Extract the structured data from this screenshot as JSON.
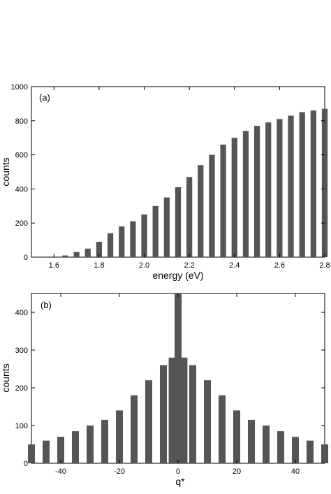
{
  "chart_data": [
    {
      "type": "bar",
      "panel_label": "(a)",
      "xlabel": "energy (eV)",
      "ylabel": "counts",
      "xlim": [
        1.5,
        2.8
      ],
      "ylim": [
        0,
        1000
      ],
      "xticks": [
        1.6,
        1.8,
        2.0,
        2.2,
        2.4,
        2.6,
        2.8
      ],
      "xtick_labels": [
        "1.6",
        "1.8",
        "2.0",
        "2.2",
        "2.4",
        "2.6",
        "2.8"
      ],
      "yticks": [
        0,
        200,
        400,
        600,
        800,
        1000
      ],
      "ytick_labels": [
        "0",
        "200",
        "400",
        "600",
        "800",
        "1000"
      ],
      "bar_color": "#555555",
      "series": [
        {
          "x": [
            1.5,
            1.55,
            1.6,
            1.62,
            1.65,
            1.7,
            1.75,
            1.8,
            1.85,
            1.9,
            1.95,
            2.0,
            2.05,
            2.1,
            2.15,
            2.2,
            2.25,
            2.3,
            2.35,
            2.4,
            2.45,
            2.5,
            2.55,
            2.6,
            2.65,
            2.7,
            2.75,
            2.8
          ],
          "values": [
            0,
            0,
            0,
            0,
            10,
            30,
            50,
            90,
            140,
            180,
            210,
            250,
            300,
            350,
            410,
            470,
            540,
            600,
            660,
            700,
            740,
            770,
            790,
            810,
            830,
            850,
            860,
            870
          ]
        }
      ]
    },
    {
      "type": "bar",
      "panel_label": "(b)",
      "xlabel": "q*",
      "ylabel": "counts",
      "xlim": [
        -50,
        50
      ],
      "ylim": [
        0,
        450
      ],
      "xticks": [
        -40,
        -20,
        0,
        20,
        40
      ],
      "xtick_labels": [
        "-40",
        "-20",
        "0",
        "20",
        "40"
      ],
      "yticks": [
        0,
        100,
        200,
        300,
        400
      ],
      "ytick_labels": [
        "0",
        "100",
        "200",
        "300",
        "400"
      ],
      "bar_color": "#555555",
      "series": [
        {
          "x": [
            -50,
            -45,
            -40,
            -35,
            -30,
            -25,
            -20,
            -15,
            -10,
            -5,
            -2,
            0,
            2,
            5,
            10,
            15,
            20,
            25,
            30,
            35,
            40,
            45,
            50
          ],
          "values": [
            50,
            60,
            70,
            85,
            100,
            115,
            140,
            180,
            220,
            260,
            280,
            450,
            280,
            260,
            220,
            180,
            140,
            115,
            100,
            85,
            70,
            60,
            50
          ]
        }
      ]
    }
  ]
}
